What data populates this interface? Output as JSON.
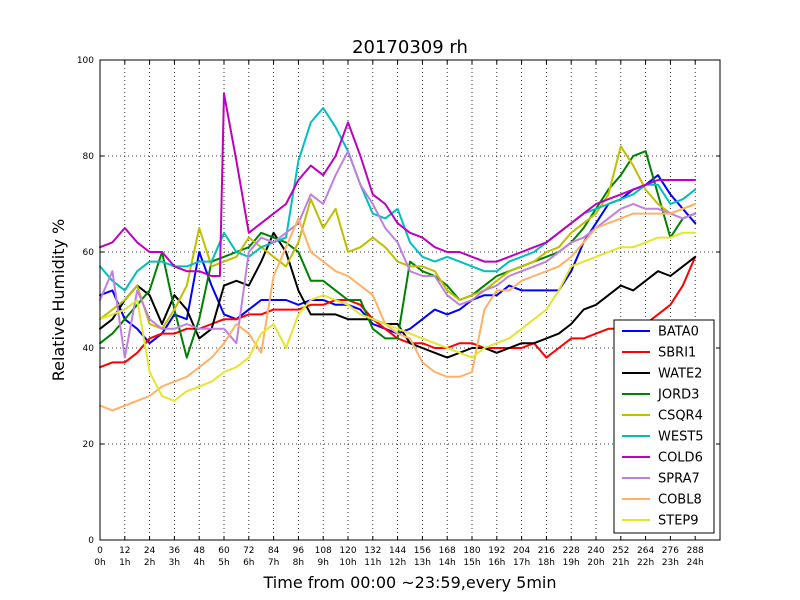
{
  "chart_data": {
    "type": "line",
    "title": "20170309 rh",
    "xlabel": "Time from 00:00 ~23:59,every 5min",
    "ylabel": "Relative Humidity %",
    "xlim": [
      0,
      300
    ],
    "ylim": [
      0,
      100
    ],
    "grid": true,
    "legend_position": "lower-right",
    "xticks": [
      0,
      12,
      24,
      36,
      48,
      60,
      72,
      84,
      96,
      108,
      120,
      132,
      144,
      156,
      168,
      180,
      192,
      204,
      216,
      228,
      240,
      252,
      264,
      276,
      288
    ],
    "xtick_labels_top": [
      "0",
      "12",
      "24",
      "36",
      "48",
      "60",
      "72",
      "84",
      "96",
      "108",
      "120",
      "132",
      "144",
      "156",
      "168",
      "180",
      "192",
      "204",
      "216",
      "228",
      "240",
      "252",
      "264",
      "276",
      "288"
    ],
    "xtick_labels_bottom": [
      "0h",
      "1h",
      "2h",
      "3h",
      "4h",
      "5h",
      "6h",
      "7h",
      "8h",
      "9h",
      "10h",
      "11h",
      "12h",
      "13h",
      "14h",
      "15h",
      "16h",
      "17h",
      "18h",
      "19h",
      "20h",
      "21h",
      "22h",
      "23h",
      "24h"
    ],
    "yticks": [
      0,
      20,
      40,
      60,
      80,
      100
    ],
    "ytick_labels": [
      "0",
      "20",
      "40",
      "60",
      "80",
      "100"
    ],
    "series": [
      {
        "name": "BATA0",
        "color": "#0000ff",
        "x": [
          0,
          6,
          12,
          18,
          24,
          30,
          36,
          42,
          48,
          54,
          60,
          66,
          72,
          78,
          84,
          90,
          96,
          102,
          108,
          114,
          120,
          126,
          132,
          138,
          144,
          150,
          156,
          162,
          168,
          174,
          180,
          186,
          192,
          198,
          204,
          210,
          216,
          222,
          228,
          234,
          240,
          246,
          252,
          258,
          264,
          270,
          276,
          282,
          288
        ],
        "y": [
          51,
          52,
          46,
          44,
          41,
          43,
          47,
          46,
          60,
          53,
          47,
          46,
          48,
          50,
          50,
          50,
          49,
          50,
          50,
          49,
          49,
          48,
          45,
          44,
          43,
          44,
          46,
          48,
          47,
          48,
          50,
          51,
          51,
          53,
          52,
          52,
          52,
          52,
          56,
          62,
          66,
          70,
          71,
          73,
          74,
          76,
          72,
          69,
          66
        ]
      },
      {
        "name": "SBRI1",
        "color": "#ff0000",
        "x": [
          0,
          6,
          12,
          18,
          24,
          30,
          36,
          42,
          48,
          54,
          60,
          66,
          72,
          78,
          84,
          90,
          96,
          102,
          108,
          114,
          120,
          126,
          132,
          138,
          144,
          150,
          156,
          162,
          168,
          174,
          180,
          186,
          192,
          198,
          204,
          210,
          216,
          222,
          228,
          234,
          240,
          246,
          252,
          258,
          264,
          270,
          276,
          282,
          288
        ],
        "y": [
          36,
          37,
          37,
          39,
          42,
          43,
          43,
          44,
          44,
          45,
          46,
          46,
          47,
          47,
          48,
          48,
          48,
          49,
          49,
          50,
          50,
          49,
          46,
          44,
          42,
          41,
          41,
          40,
          40,
          41,
          41,
          40,
          40,
          40,
          40,
          41,
          38,
          40,
          42,
          42,
          43,
          44,
          44,
          44,
          45,
          47,
          49,
          53,
          59
        ]
      },
      {
        "name": "WATE2",
        "color": "#000000",
        "x": [
          0,
          6,
          12,
          18,
          24,
          30,
          36,
          42,
          48,
          54,
          60,
          66,
          72,
          78,
          84,
          90,
          96,
          102,
          108,
          114,
          120,
          126,
          132,
          138,
          144,
          150,
          156,
          162,
          168,
          174,
          180,
          186,
          192,
          198,
          204,
          210,
          216,
          222,
          228,
          234,
          240,
          246,
          252,
          258,
          264,
          270,
          276,
          282,
          288
        ],
        "y": [
          44,
          46,
          50,
          53,
          51,
          45,
          51,
          48,
          42,
          44,
          53,
          54,
          53,
          58,
          64,
          60,
          52,
          47,
          47,
          47,
          46,
          46,
          46,
          45,
          45,
          41,
          40,
          39,
          38,
          39,
          40,
          40,
          39,
          40,
          41,
          41,
          42,
          43,
          45,
          48,
          49,
          51,
          53,
          52,
          54,
          56,
          55,
          57,
          59
        ]
      },
      {
        "name": "JORD3",
        "color": "#008000",
        "x": [
          0,
          6,
          12,
          18,
          24,
          30,
          36,
          42,
          48,
          54,
          60,
          66,
          72,
          78,
          84,
          90,
          96,
          102,
          108,
          114,
          120,
          126,
          132,
          138,
          144,
          150,
          156,
          162,
          168,
          174,
          180,
          186,
          192,
          198,
          204,
          210,
          216,
          222,
          228,
          234,
          240,
          246,
          252,
          258,
          264,
          270,
          276,
          282,
          288
        ],
        "y": [
          41,
          43,
          46,
          49,
          52,
          60,
          48,
          38,
          46,
          58,
          59,
          60,
          61,
          64,
          63,
          62,
          60,
          54,
          54,
          52,
          50,
          50,
          44,
          42,
          42,
          58,
          56,
          55,
          53,
          50,
          51,
          53,
          55,
          56,
          57,
          58,
          59,
          60,
          62,
          65,
          69,
          73,
          76,
          80,
          81,
          72,
          63,
          67,
          68
        ]
      },
      {
        "name": "CSQR4",
        "color": "#bfbf00",
        "x": [
          0,
          6,
          12,
          18,
          24,
          30,
          36,
          42,
          48,
          54,
          60,
          66,
          72,
          78,
          84,
          90,
          96,
          102,
          108,
          114,
          120,
          126,
          132,
          138,
          144,
          150,
          156,
          162,
          168,
          174,
          180,
          186,
          192,
          198,
          204,
          210,
          216,
          222,
          228,
          234,
          240,
          246,
          252,
          258,
          264,
          270,
          276,
          282,
          288
        ],
        "y": [
          46,
          48,
          50,
          53,
          45,
          44,
          48,
          53,
          65,
          57,
          58,
          59,
          63,
          61,
          59,
          57,
          62,
          71,
          65,
          69,
          60,
          61,
          63,
          61,
          58,
          57,
          57,
          56,
          52,
          50,
          51,
          52,
          54,
          56,
          57,
          58,
          60,
          61,
          64,
          66,
          68,
          72,
          82,
          78,
          73,
          70,
          68,
          69,
          70
        ]
      },
      {
        "name": "WEST5",
        "color": "#00bfbf",
        "x": [
          0,
          6,
          12,
          18,
          24,
          30,
          36,
          42,
          48,
          54,
          60,
          66,
          72,
          78,
          84,
          90,
          96,
          102,
          108,
          114,
          120,
          126,
          132,
          138,
          144,
          150,
          156,
          162,
          168,
          174,
          180,
          186,
          192,
          198,
          204,
          210,
          216,
          222,
          228,
          234,
          240,
          246,
          252,
          258,
          264,
          270,
          276,
          282,
          288
        ],
        "y": [
          57,
          54,
          52,
          56,
          58,
          58,
          57,
          57,
          58,
          58,
          64,
          60,
          59,
          61,
          62,
          63,
          79,
          87,
          90,
          86,
          81,
          74,
          68,
          67,
          69,
          62,
          59,
          58,
          59,
          58,
          57,
          56,
          56,
          58,
          59,
          60,
          62,
          64,
          66,
          68,
          69,
          70,
          71,
          72,
          74,
          74,
          70,
          71,
          73
        ]
      },
      {
        "name": "COLD6",
        "color": "#bf00bf",
        "x": [
          0,
          6,
          12,
          18,
          24,
          30,
          36,
          42,
          48,
          54,
          58,
          60,
          66,
          72,
          78,
          84,
          90,
          96,
          102,
          108,
          114,
          120,
          126,
          132,
          138,
          144,
          150,
          156,
          162,
          168,
          174,
          180,
          186,
          192,
          198,
          204,
          210,
          216,
          222,
          228,
          234,
          240,
          246,
          252,
          258,
          264,
          270,
          276,
          282,
          288
        ],
        "y": [
          61,
          62,
          65,
          62,
          60,
          60,
          57,
          56,
          56,
          55,
          55,
          93,
          79,
          64,
          66,
          68,
          70,
          75,
          78,
          76,
          80,
          87,
          80,
          72,
          70,
          66,
          64,
          63,
          61,
          60,
          60,
          59,
          58,
          58,
          59,
          60,
          61,
          62,
          64,
          66,
          68,
          70,
          71,
          72,
          73,
          74,
          75,
          75,
          75,
          75
        ]
      },
      {
        "name": "SPRA7",
        "color": "#bf80df",
        "x": [
          0,
          6,
          12,
          18,
          24,
          30,
          36,
          42,
          48,
          54,
          60,
          66,
          72,
          78,
          84,
          90,
          96,
          102,
          108,
          114,
          120,
          126,
          132,
          138,
          144,
          150,
          156,
          162,
          168,
          174,
          180,
          186,
          192,
          198,
          204,
          210,
          216,
          222,
          228,
          234,
          240,
          246,
          252,
          258,
          264,
          270,
          276,
          282,
          288
        ],
        "y": [
          50,
          56,
          38,
          52,
          46,
          44,
          44,
          45,
          44,
          44,
          44,
          41,
          60,
          63,
          62,
          64,
          66,
          72,
          70,
          76,
          81,
          74,
          70,
          65,
          62,
          56,
          55,
          55,
          51,
          49,
          50,
          52,
          53,
          55,
          56,
          57,
          58,
          60,
          62,
          63,
          65,
          67,
          69,
          70,
          69,
          69,
          68,
          67,
          68
        ]
      },
      {
        "name": "COBL8",
        "color": "#ffb266",
        "x": [
          0,
          6,
          12,
          18,
          24,
          30,
          36,
          42,
          48,
          54,
          60,
          66,
          72,
          78,
          84,
          90,
          96,
          102,
          108,
          114,
          120,
          126,
          132,
          138,
          144,
          150,
          156,
          162,
          168,
          174,
          180,
          186,
          192,
          198,
          204,
          210,
          216,
          222,
          228,
          234,
          240,
          246,
          252,
          258,
          264,
          270,
          276,
          282,
          288
        ],
        "y": [
          28,
          27,
          28,
          29,
          30,
          32,
          33,
          34,
          36,
          38,
          41,
          45,
          43,
          39,
          55,
          61,
          67,
          60,
          58,
          56,
          55,
          53,
          51,
          45,
          43,
          42,
          37,
          35,
          34,
          34,
          35,
          48,
          52,
          52,
          54,
          55,
          56,
          57,
          59,
          62,
          65,
          66,
          67,
          68,
          68,
          68,
          68,
          69,
          70
        ]
      },
      {
        "name": "STEP9",
        "color": "#e5e530",
        "x": [
          0,
          6,
          12,
          18,
          24,
          30,
          36,
          42,
          48,
          54,
          60,
          66,
          72,
          78,
          84,
          90,
          96,
          102,
          108,
          114,
          120,
          126,
          132,
          138,
          144,
          150,
          156,
          162,
          168,
          174,
          180,
          186,
          192,
          198,
          204,
          210,
          216,
          222,
          228,
          234,
          240,
          246,
          252,
          258,
          264,
          270,
          276,
          282,
          288
        ],
        "y": [
          46,
          47,
          48,
          50,
          35,
          30,
          29,
          31,
          32,
          33,
          35,
          36,
          38,
          43,
          45,
          40,
          47,
          50,
          51,
          50,
          49,
          47,
          46,
          45,
          44,
          43,
          42,
          41,
          40,
          39,
          38,
          40,
          41,
          42,
          44,
          46,
          48,
          52,
          57,
          58,
          59,
          60,
          61,
          61,
          62,
          63,
          63,
          64,
          64
        ]
      }
    ]
  }
}
